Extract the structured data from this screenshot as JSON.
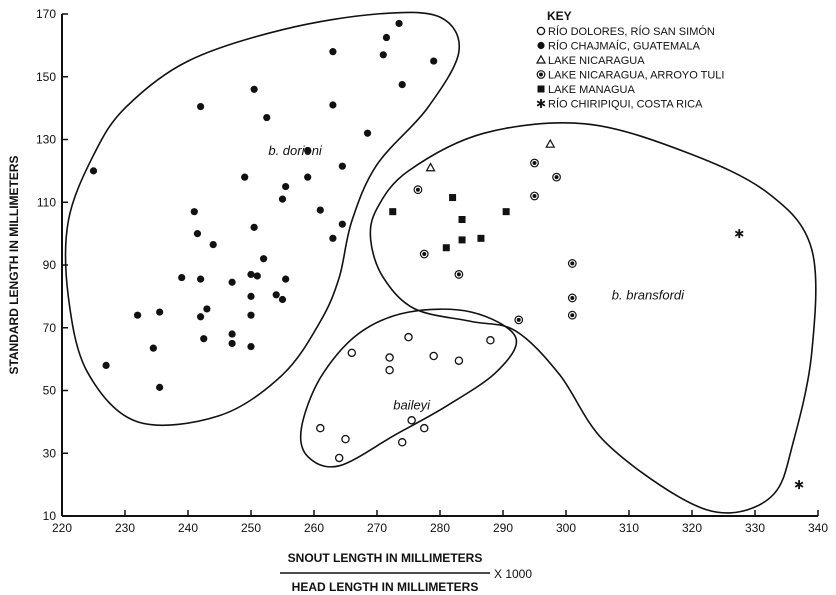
{
  "chart_data": {
    "type": "scatter",
    "xlabel_numerator": "SNOUT LENGTH IN MILLIMETERS",
    "xlabel_denominator": "HEAD LENGTH IN MILLIMETERS",
    "xlabel_multiplier": "X 1000",
    "ylabel": "STANDARD LENGTH IN MILLIMETERS",
    "xlim": [
      220,
      340
    ],
    "ylim": [
      10,
      170
    ],
    "xticks": [
      220,
      230,
      240,
      250,
      260,
      270,
      280,
      290,
      300,
      310,
      320,
      330,
      340
    ],
    "yticks": [
      10,
      30,
      50,
      70,
      90,
      110,
      130,
      150,
      170
    ],
    "legend_title": "KEY",
    "legend_placement": "top-right",
    "series": [
      {
        "name": "RÍO DOLORES, RÍO SAN SIMÓN",
        "marker": "open-circle",
        "points": [
          [
            261,
            38
          ],
          [
            264,
            28.5
          ],
          [
            265,
            34.5
          ],
          [
            266,
            62
          ],
          [
            272,
            60.5
          ],
          [
            272,
            56.5
          ],
          [
            274,
            33.5
          ],
          [
            275,
            67
          ],
          [
            275.5,
            40.5
          ],
          [
            277.5,
            38
          ],
          [
            279,
            61
          ],
          [
            283,
            59.5
          ],
          [
            288,
            66
          ]
        ]
      },
      {
        "name": "RÍO CHAJMAÍC, GUATEMALA",
        "marker": "filled-circle",
        "points": [
          [
            225,
            120
          ],
          [
            227,
            58
          ],
          [
            232,
            74
          ],
          [
            234.5,
            63.5
          ],
          [
            235.5,
            75
          ],
          [
            235.5,
            51
          ],
          [
            239,
            86
          ],
          [
            241,
            107
          ],
          [
            241.5,
            100
          ],
          [
            242,
            140.5
          ],
          [
            242,
            85.5
          ],
          [
            242,
            73.5
          ],
          [
            242.5,
            66.5
          ],
          [
            243,
            76
          ],
          [
            244,
            96.5
          ],
          [
            247,
            84.5
          ],
          [
            247,
            68
          ],
          [
            247,
            65
          ],
          [
            249,
            118
          ],
          [
            250,
            87
          ],
          [
            250,
            80
          ],
          [
            250,
            74
          ],
          [
            250,
            64
          ],
          [
            250.5,
            146
          ],
          [
            250.5,
            102
          ],
          [
            251,
            86.5
          ],
          [
            252,
            92
          ],
          [
            252.5,
            137
          ],
          [
            254,
            80.5
          ],
          [
            255,
            79
          ],
          [
            255,
            111
          ],
          [
            255.5,
            115
          ],
          [
            255.5,
            85.5
          ],
          [
            259,
            126.5
          ],
          [
            259,
            118
          ],
          [
            261,
            107.5
          ],
          [
            263,
            158
          ],
          [
            263,
            141
          ],
          [
            263,
            98.5
          ],
          [
            264.5,
            121.5
          ],
          [
            264.5,
            103
          ],
          [
            268.5,
            132
          ],
          [
            271,
            157
          ],
          [
            271.5,
            162.5
          ],
          [
            273.5,
            167
          ],
          [
            274,
            147.5
          ],
          [
            279,
            155
          ]
        ]
      },
      {
        "name": "LAKE NICARAGUA",
        "marker": "open-triangle",
        "points": [
          [
            278.5,
            121
          ],
          [
            297.5,
            128.5
          ]
        ]
      },
      {
        "name": "LAKE NICARAGUA, ARROYO TULI",
        "marker": "ring-dot",
        "points": [
          [
            276.5,
            114
          ],
          [
            277.5,
            93.5
          ],
          [
            283,
            87
          ],
          [
            292.5,
            72.5
          ],
          [
            295,
            122.5
          ],
          [
            295,
            112
          ],
          [
            298.5,
            118
          ],
          [
            301,
            90.5
          ],
          [
            301,
            79.5
          ],
          [
            301,
            74
          ]
        ]
      },
      {
        "name": "LAKE MANAGUA",
        "marker": "filled-square",
        "points": [
          [
            272.5,
            107
          ],
          [
            281,
            95.5
          ],
          [
            282,
            111.5
          ],
          [
            283.5,
            104.5
          ],
          [
            283.5,
            98
          ],
          [
            286.5,
            98.5
          ],
          [
            290.5,
            107
          ]
        ]
      },
      {
        "name": "RÍO CHIRIPIQUI, COSTA RICA",
        "marker": "asterisk",
        "points": [
          [
            327.5,
            100
          ],
          [
            337,
            20
          ]
        ]
      }
    ],
    "regions": [
      {
        "label": "b. dorioni",
        "label_at": [
          257,
          125
        ],
        "outline": [
          [
            221,
            104
          ],
          [
            225,
            125
          ],
          [
            230,
            140
          ],
          [
            240,
            155
          ],
          [
            255,
            165
          ],
          [
            270,
            170
          ],
          [
            280,
            169
          ],
          [
            283,
            158
          ],
          [
            278,
            140
          ],
          [
            270,
            122
          ],
          [
            266,
            104
          ],
          [
            264,
            86
          ],
          [
            261,
            72
          ],
          [
            255,
            55
          ],
          [
            245,
            42
          ],
          [
            232,
            40
          ],
          [
            224,
            56
          ],
          [
            221,
            80
          ]
        ]
      },
      {
        "label": "baileyi",
        "label_at": [
          275.5,
          44
        ],
        "outline": [
          [
            258,
            38
          ],
          [
            261,
            54
          ],
          [
            267,
            68
          ],
          [
            275,
            75
          ],
          [
            285,
            75
          ],
          [
            292,
            67
          ],
          [
            289,
            56
          ],
          [
            281,
            45
          ],
          [
            273,
            36
          ],
          [
            264,
            26
          ],
          [
            259,
            29
          ]
        ]
      },
      {
        "label": "b. bransfordi",
        "label_at": [
          313,
          79
        ],
        "outline": [
          [
            270,
            108
          ],
          [
            275,
            120
          ],
          [
            287,
            132
          ],
          [
            303,
            135
          ],
          [
            319,
            126
          ],
          [
            332,
            113
          ],
          [
            339,
            95
          ],
          [
            339,
            62
          ],
          [
            336,
            33
          ],
          [
            333,
            17
          ],
          [
            326,
            11
          ],
          [
            318,
            16
          ],
          [
            306,
            34
          ],
          [
            299,
            55
          ],
          [
            292,
            69
          ],
          [
            285,
            72
          ],
          [
            276,
            76
          ],
          [
            271,
            86
          ],
          [
            269,
            98
          ]
        ]
      }
    ]
  }
}
